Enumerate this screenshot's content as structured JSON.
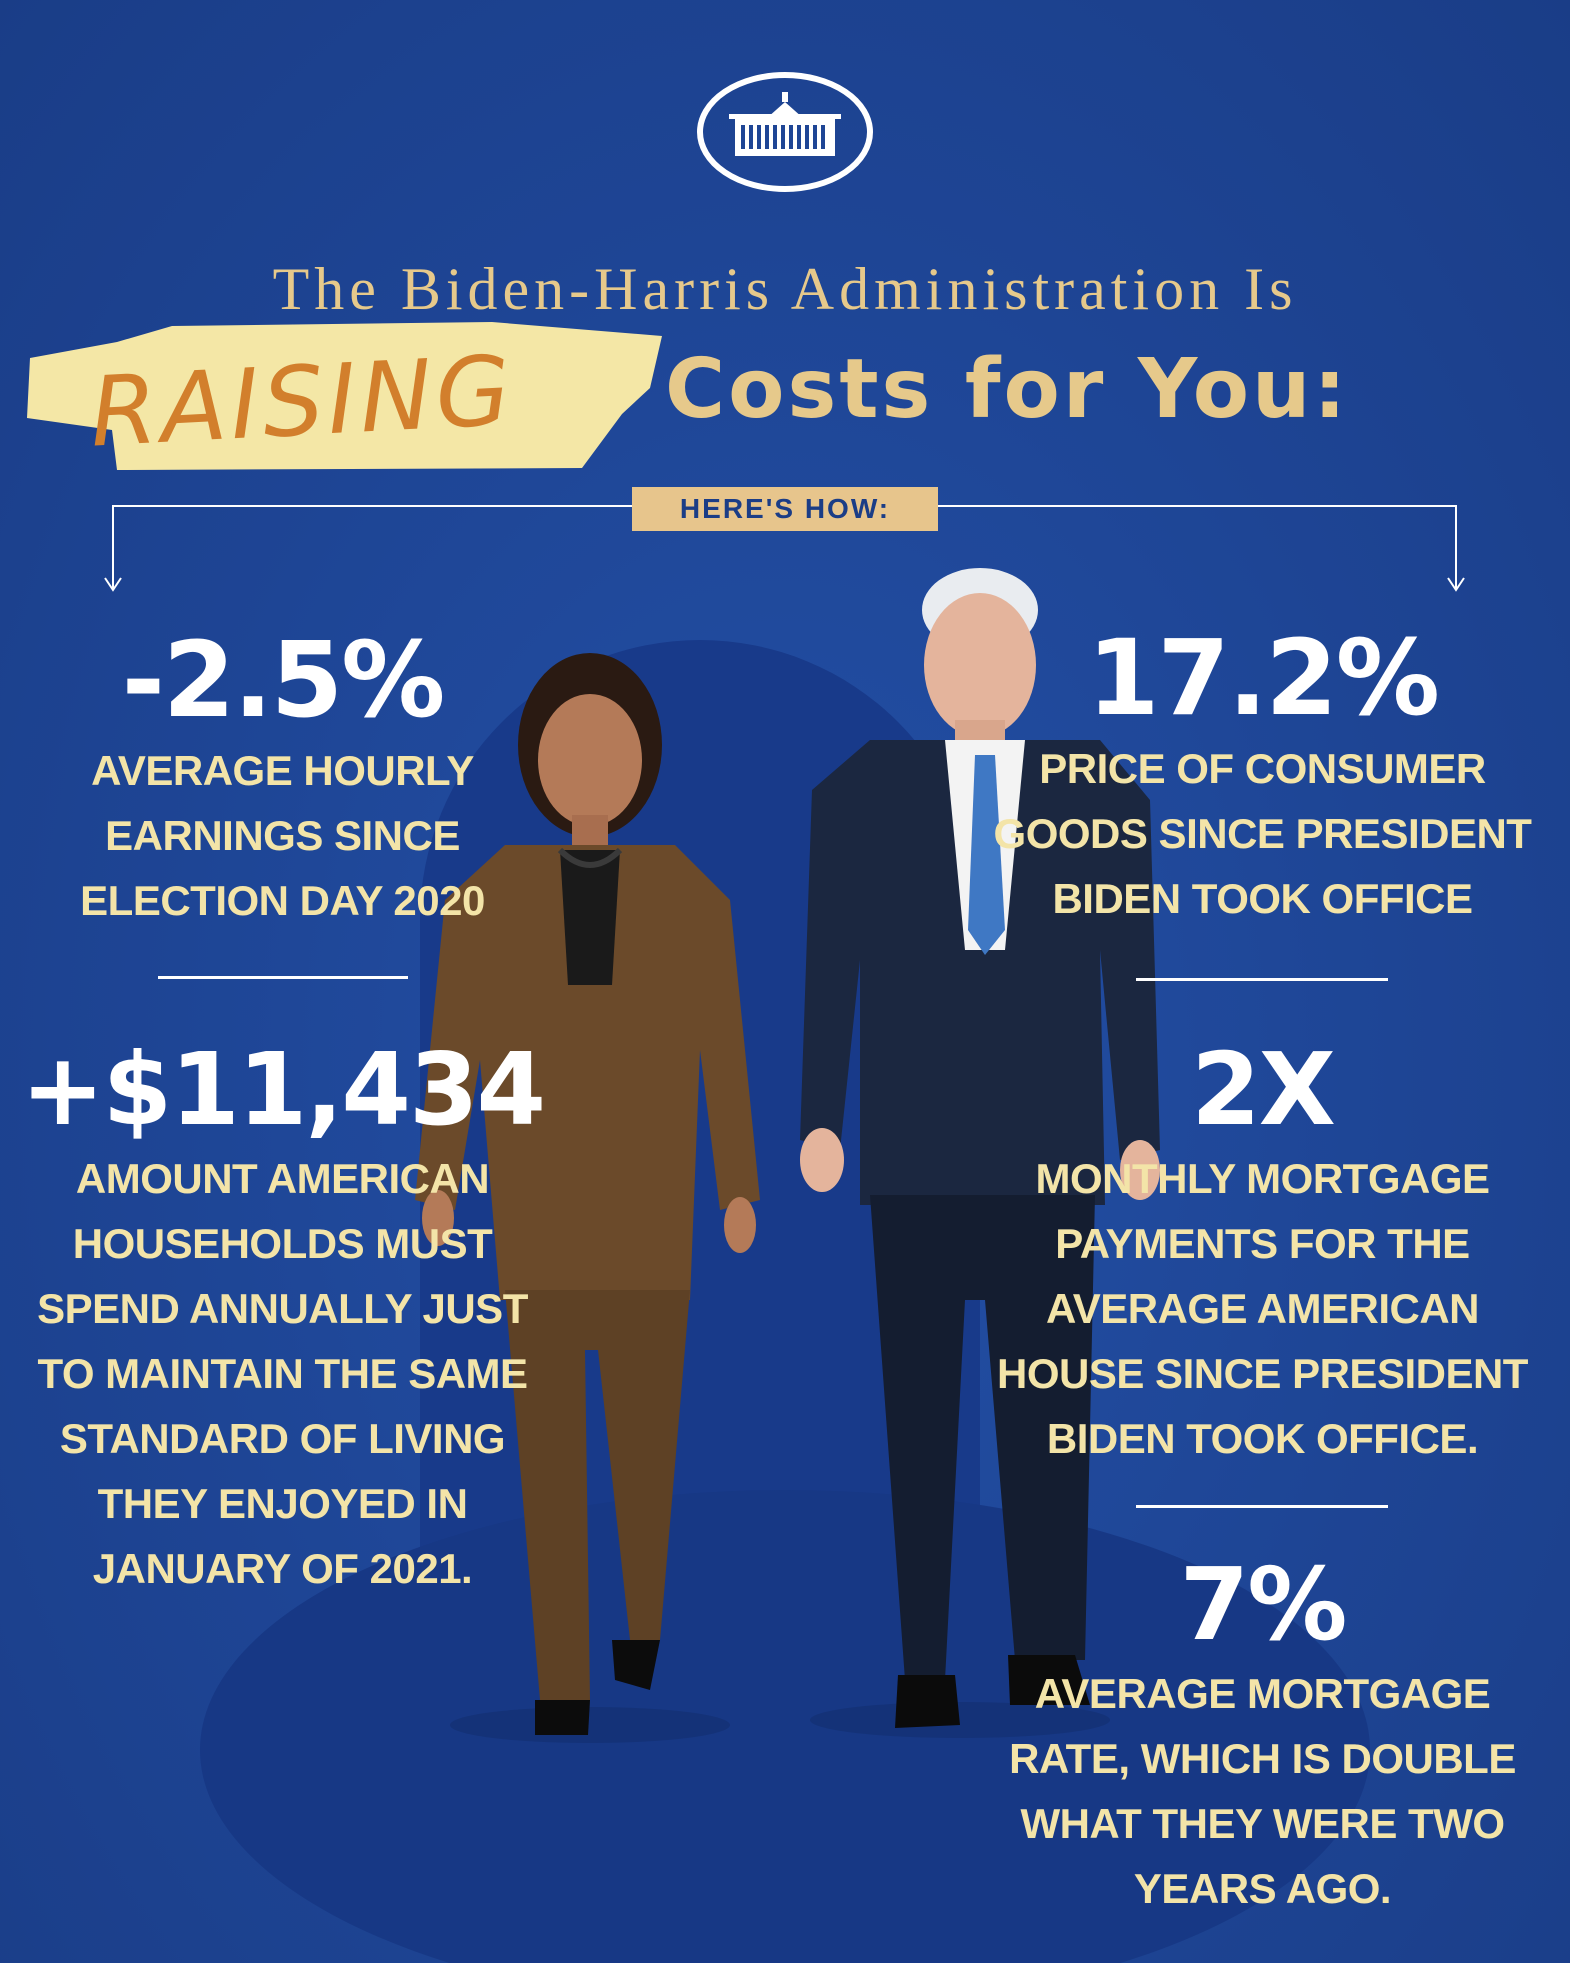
{
  "header": {
    "title_line1": "The Biden-Harris Administration Is",
    "highlight_word": "RAISING",
    "title_line2": "Costs for You:",
    "badge": "HERE'S HOW:"
  },
  "stats": {
    "earnings": {
      "value": "-2.5%",
      "lines": [
        "AVERAGE HOURLY",
        "EARNINGS SINCE",
        "ELECTION DAY 2020"
      ]
    },
    "extra_spending": {
      "value": "+$11,434",
      "lines": [
        "AMOUNT AMERICAN",
        "HOUSEHOLDS MUST",
        "SPEND ANNUALLY JUST",
        "TO MAINTAIN THE SAME",
        "STANDARD OF LIVING",
        "THEY ENJOYED IN",
        "JANUARY OF 2021."
      ]
    },
    "consumer_goods": {
      "value": "17.2%",
      "lines": [
        "PRICE OF CONSUMER",
        "GOODS SINCE PRESIDENT",
        "BIDEN TOOK OFFICE"
      ]
    },
    "mortgage_payments": {
      "value": "2X",
      "lines": [
        "MONTHLY MORTGAGE",
        "PAYMENTS FOR THE",
        "AVERAGE AMERICAN",
        "HOUSE SINCE PRESIDENT",
        "BIDEN TOOK OFFICE."
      ]
    },
    "mortgage_rate": {
      "value": "7%",
      "lines": [
        "AVERAGE MORTGAGE",
        "RATE, WHICH IS DOUBLE",
        "WHAT THEY WERE TWO",
        "YEARS AGO."
      ]
    }
  },
  "colors": {
    "background": "#1e4595",
    "gold": "#e6c98b",
    "stat_text": "#f3e4a8",
    "highlight_tape": "#f4e7a6",
    "highlight_ink": "#d27f2c"
  },
  "icons": [
    "white-house-logo-icon",
    "arrow-down-icon"
  ]
}
